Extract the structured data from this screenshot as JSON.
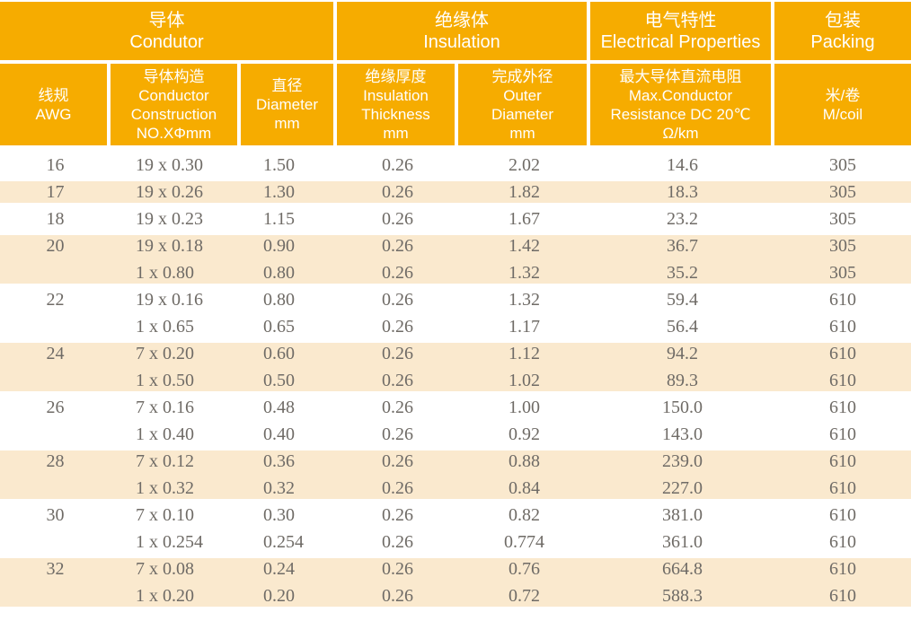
{
  "colors": {
    "header_bg": "#F6AC00",
    "row_shade_bg": "#FAE9CE",
    "header_text": "#FFFFFF",
    "body_text": "#6F6B66",
    "grid_line": "#FFFFFF"
  },
  "table": {
    "header": {
      "groups": [
        {
          "zh": "导体",
          "en": "Condutor",
          "span": 3
        },
        {
          "zh": "绝缘体",
          "en": "Insulation",
          "span": 2
        },
        {
          "zh": "电气特性",
          "en": "Electrical Properties",
          "span": 1
        },
        {
          "zh": "包装",
          "en": "Packing",
          "span": 1
        }
      ],
      "columns": [
        {
          "id": "awg",
          "lines": [
            "线规",
            "AWG"
          ]
        },
        {
          "id": "construction",
          "lines": [
            "导体构造",
            "Conductor",
            "Construction",
            "NO.XΦmm"
          ]
        },
        {
          "id": "diameter",
          "lines": [
            "直径",
            "Diameter",
            "mm"
          ]
        },
        {
          "id": "insulation-thickness",
          "lines": [
            "绝缘厚度",
            "Insulation",
            "Thickness",
            "mm"
          ]
        },
        {
          "id": "outer-diameter",
          "lines": [
            "完成外径",
            "Outer",
            "Diameter",
            "mm"
          ]
        },
        {
          "id": "resistance",
          "lines": [
            "最大导体直流电阻",
            "Max.Conductor",
            "Resistance DC 20℃",
            "Ω/km"
          ]
        },
        {
          "id": "m-per-coil",
          "lines": [
            "米/卷",
            "M/coil"
          ]
        }
      ]
    },
    "rows": [
      {
        "cells": [
          "16",
          "19 x 0.30",
          "1.50",
          "0.26",
          "2.02",
          "14.6",
          "305"
        ],
        "shaded": false
      },
      {
        "cells": [
          "17",
          "19 x 0.26",
          "1.30",
          "0.26",
          "1.82",
          "18.3",
          "305"
        ],
        "shaded": true
      },
      {
        "cells": [
          "18",
          "19 x 0.23",
          "1.15",
          "0.26",
          "1.67",
          "23.2",
          "305"
        ],
        "shaded": false
      },
      {
        "cells": [
          "20",
          "19 x 0.18",
          "0.90",
          "0.26",
          "1.42",
          "36.7",
          "305"
        ],
        "shaded": true
      },
      {
        "cells": [
          "",
          "1 x 0.80",
          "0.80",
          "0.26",
          "1.32",
          "35.2",
          "305"
        ],
        "shaded": true
      },
      {
        "cells": [
          "22",
          "19 x 0.16",
          "0.80",
          "0.26",
          "1.32",
          "59.4",
          "610"
        ],
        "shaded": false
      },
      {
        "cells": [
          "",
          "1 x 0.65",
          "0.65",
          "0.26",
          "1.17",
          "56.4",
          "610"
        ],
        "shaded": false
      },
      {
        "cells": [
          "24",
          "7 x 0.20",
          "0.60",
          "0.26",
          "1.12",
          "94.2",
          "610"
        ],
        "shaded": true
      },
      {
        "cells": [
          "",
          "1 x 0.50",
          "0.50",
          "0.26",
          "1.02",
          "89.3",
          "610"
        ],
        "shaded": true
      },
      {
        "cells": [
          "26",
          "7 x 0.16",
          "0.48",
          "0.26",
          "1.00",
          "150.0",
          "610"
        ],
        "shaded": false
      },
      {
        "cells": [
          "",
          "1 x 0.40",
          "0.40",
          "0.26",
          "0.92",
          "143.0",
          "610"
        ],
        "shaded": false
      },
      {
        "cells": [
          "28",
          "7 x 0.12",
          "0.36",
          "0.26",
          "0.88",
          "239.0",
          "610"
        ],
        "shaded": true
      },
      {
        "cells": [
          "",
          "1 x 0.32",
          "0.32",
          "0.26",
          "0.84",
          "227.0",
          "610"
        ],
        "shaded": true
      },
      {
        "cells": [
          "30",
          "7 x 0.10",
          "0.30",
          "0.26",
          "0.82",
          "381.0",
          "610"
        ],
        "shaded": false
      },
      {
        "cells": [
          "",
          "1 x 0.254",
          "0.254",
          "0.26",
          "0.774",
          "361.0",
          "610"
        ],
        "shaded": false
      },
      {
        "cells": [
          "32",
          "7 x 0.08",
          "0.24",
          "0.26",
          "0.76",
          "664.8",
          "610"
        ],
        "shaded": true
      },
      {
        "cells": [
          "",
          "1 x 0.20",
          "0.20",
          "0.26",
          "0.72",
          "588.3",
          "610"
        ],
        "shaded": true
      }
    ]
  }
}
